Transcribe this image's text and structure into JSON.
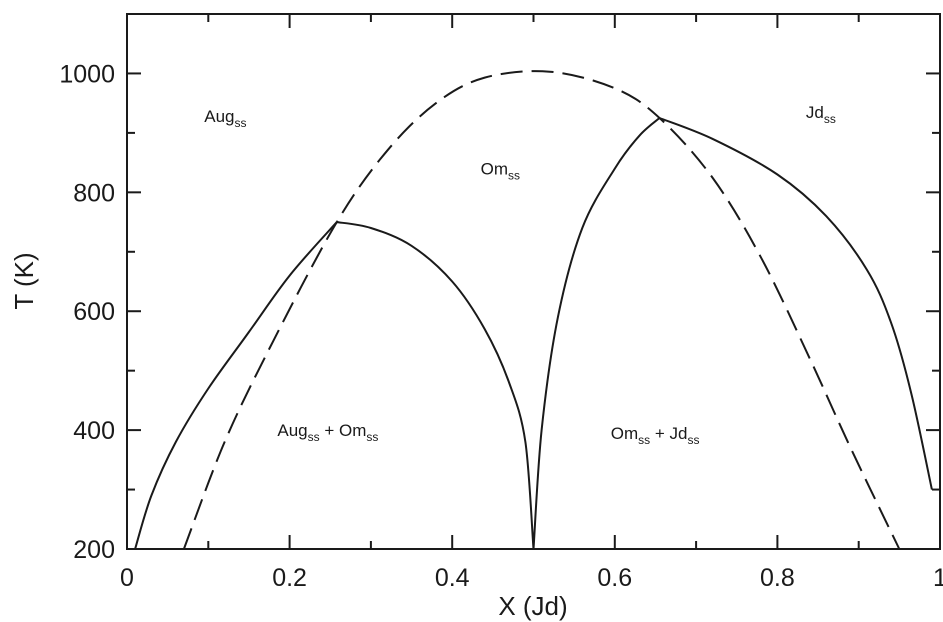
{
  "chart_data": {
    "type": "line",
    "title": "",
    "xlabel": "X (Jd)",
    "ylabel": "T (K)",
    "xlim": [
      0,
      1
    ],
    "ylim": [
      200,
      1100
    ],
    "xticks": [
      0,
      0.2,
      0.4,
      0.6,
      0.8,
      1
    ],
    "xtick_labels": [
      "0",
      "0.2",
      "0.4",
      "0.6",
      "0.8",
      "1"
    ],
    "yticks": [
      200,
      400,
      600,
      800,
      1000
    ],
    "ytick_labels": [
      "200",
      "400",
      "600",
      "800",
      "1000"
    ],
    "grid": false,
    "series": [
      {
        "style": "solid",
        "x": [
          0.01,
          0.03,
          0.06,
          0.1,
          0.15,
          0.2,
          0.258
        ],
        "y": [
          200,
          290,
          380,
          470,
          565,
          660,
          750
        ]
      },
      {
        "style": "solid",
        "x": [
          0.258,
          0.3,
          0.35,
          0.4,
          0.44,
          0.47,
          0.49,
          0.5
        ],
        "y": [
          750,
          740,
          710,
          650,
          570,
          480,
          380,
          200
        ]
      },
      {
        "style": "solid",
        "x": [
          0.5,
          0.51,
          0.53,
          0.56,
          0.6,
          0.63,
          0.655
        ],
        "y": [
          200,
          400,
          590,
          740,
          840,
          895,
          925
        ]
      },
      {
        "style": "solid",
        "x": [
          0.655,
          0.72,
          0.8,
          0.86,
          0.91,
          0.94,
          0.965,
          0.99
        ],
        "y": [
          925,
          890,
          830,
          760,
          670,
          580,
          460,
          300
        ]
      },
      {
        "style": "dashed",
        "x": [
          0.07,
          0.12,
          0.18,
          0.258,
          0.32,
          0.38,
          0.44,
          0.52,
          0.6,
          0.655,
          0.72,
          0.78,
          0.84,
          0.89,
          0.95
        ],
        "y": [
          200,
          380,
          550,
          750,
          870,
          950,
          993,
          1003,
          975,
          925,
          825,
          690,
          520,
          370,
          200
        ]
      }
    ],
    "annotations": [
      {
        "main": "Aug",
        "sub": "ss",
        "tail": "",
        "x": 0.095,
        "y": 918
      },
      {
        "main": "Om",
        "sub": "ss",
        "tail": "",
        "x": 0.435,
        "y": 830
      },
      {
        "main": "Jd",
        "sub": "ss",
        "tail": "",
        "x": 0.835,
        "y": 925
      },
      {
        "main": "Aug",
        "sub": "ss",
        "tail": " + Om",
        "sub2": "ss",
        "x": 0.185,
        "y": 390
      },
      {
        "main": "Om",
        "sub": "ss",
        "tail": " + Jd",
        "sub2": "ss",
        "x": 0.595,
        "y": 385
      }
    ]
  }
}
